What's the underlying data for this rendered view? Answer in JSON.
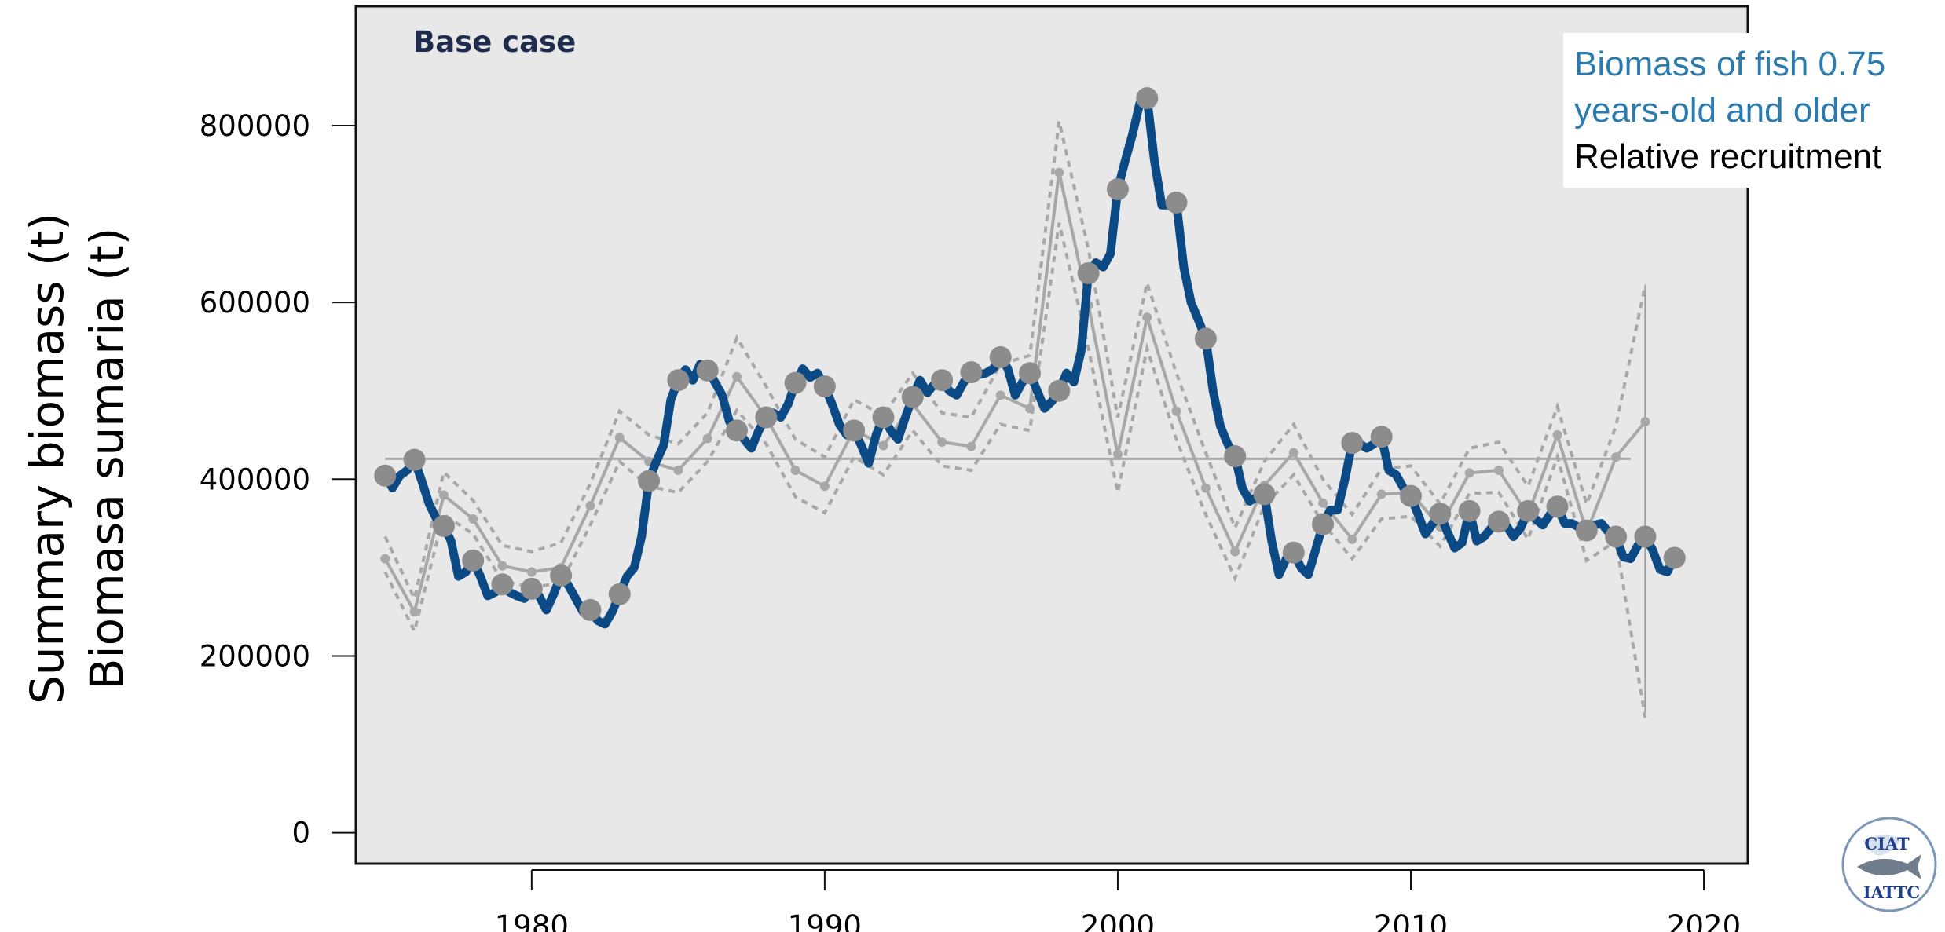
{
  "legend": {
    "biomass_line1": "Biomass of fish 0.75",
    "biomass_line2": "years-old and older",
    "recruitment": "Relative recruitment"
  },
  "logo": {
    "top_text": "CIAT",
    "bottom_text": "IATTC"
  },
  "colors": {
    "biomass": "#0b4a85",
    "recruitment": "#a8a8a8",
    "points": "#8c8c8c",
    "panel": "#e8e8e8"
  },
  "chart_data": {
    "type": "line",
    "title": "Base case",
    "ylabel_lines": [
      "Summary biomass (t)",
      "Biomasa sumaria (t)"
    ],
    "xlim": [
      1974,
      2021.5
    ],
    "ylim": [
      -35000,
      935000
    ],
    "xticks": [
      1980,
      1990,
      2000,
      2010,
      2020
    ],
    "yticks": [
      0,
      200000,
      400000,
      600000,
      800000
    ],
    "reference_line": {
      "y": 423000,
      "x_start": 1975,
      "x_end": 2017.5
    },
    "series": [
      {
        "kind": "biomass",
        "x": [
          1975,
          1975.25,
          1975.5,
          1975.75,
          1976,
          1976.25,
          1976.5,
          1976.75,
          1977,
          1977.25,
          1977.5,
          1977.75,
          1978,
          1978.25,
          1978.5,
          1978.75,
          1979,
          1979.25,
          1979.5,
          1979.75,
          1980,
          1980.25,
          1980.5,
          1980.75,
          1981,
          1981.25,
          1981.5,
          1981.75,
          1982,
          1982.25,
          1982.5,
          1982.75,
          1983,
          1983.25,
          1983.5,
          1983.75,
          1984,
          1984.25,
          1984.5,
          1984.75,
          1985,
          1985.25,
          1985.5,
          1985.75,
          1986,
          1986.25,
          1986.5,
          1986.75,
          1987,
          1987.25,
          1987.5,
          1987.75,
          1988,
          1988.25,
          1988.5,
          1988.75,
          1989,
          1989.25,
          1989.5,
          1989.75,
          1990,
          1990.25,
          1990.5,
          1990.75,
          1991,
          1991.25,
          1991.5,
          1991.75,
          1992,
          1992.25,
          1992.5,
          1992.75,
          1993,
          1993.25,
          1993.5,
          1993.75,
          1994,
          1994.25,
          1994.5,
          1994.75,
          1995,
          1995.25,
          1995.5,
          1995.75,
          1996,
          1996.25,
          1996.5,
          1996.75,
          1997,
          1997.25,
          1997.5,
          1997.75,
          1998,
          1998.25,
          1998.5,
          1998.75,
          1999,
          1999.25,
          1999.5,
          1999.75,
          2000,
          2000.25,
          2000.5,
          2000.75,
          2001,
          2001.25,
          2001.5,
          2001.75,
          2002,
          2002.25,
          2002.5,
          2002.75,
          2003,
          2003.25,
          2003.5,
          2003.75,
          2004,
          2004.25,
          2004.5,
          2004.75,
          2005,
          2005.25,
          2005.5,
          2005.75,
          2006,
          2006.25,
          2006.5,
          2006.75,
          2007,
          2007.25,
          2007.5,
          2007.75,
          2008,
          2008.25,
          2008.5,
          2008.75,
          2009,
          2009.25,
          2009.5,
          2009.75,
          2010,
          2010.25,
          2010.5,
          2010.75,
          2011,
          2011.25,
          2011.5,
          2011.75,
          2012,
          2012.25,
          2012.5,
          2012.75,
          2013,
          2013.25,
          2013.5,
          2013.75,
          2014,
          2014.25,
          2014.5,
          2014.75,
          2015,
          2015.25,
          2015.5,
          2015.75,
          2016,
          2016.25,
          2016.5,
          2016.75,
          2017,
          2017.25,
          2017.5,
          2017.75,
          2018,
          2018.25,
          2018.5,
          2018.75,
          2019
        ],
        "y": [
          404000,
          390000,
          404000,
          410000,
          422000,
          398000,
          372000,
          355000,
          347000,
          330000,
          290000,
          295000,
          308000,
          290000,
          268000,
          272000,
          281000,
          272000,
          268000,
          265000,
          276000,
          268000,
          252000,
          270000,
          291000,
          280000,
          265000,
          250000,
          252000,
          240000,
          236000,
          250000,
          270000,
          290000,
          300000,
          335000,
          398000,
          420000,
          438000,
          490000,
          512000,
          524000,
          512000,
          530000,
          523000,
          510000,
          495000,
          465000,
          455000,
          445000,
          435000,
          455000,
          470000,
          475000,
          470000,
          485000,
          509000,
          525000,
          515000,
          520000,
          505000,
          485000,
          462000,
          450000,
          455000,
          438000,
          418000,
          450000,
          470000,
          455000,
          445000,
          470000,
          493000,
          512000,
          498000,
          508000,
          512000,
          500000,
          495000,
          510000,
          521000,
          518000,
          520000,
          525000,
          538000,
          525000,
          495000,
          510000,
          520000,
          500000,
          480000,
          488000,
          500000,
          520000,
          510000,
          545000,
          633000,
          645000,
          640000,
          655000,
          728000,
          760000,
          790000,
          825000,
          831000,
          760000,
          710000,
          710000,
          713000,
          640000,
          600000,
          580000,
          559000,
          500000,
          460000,
          440000,
          426000,
          390000,
          375000,
          380000,
          383000,
          330000,
          292000,
          310000,
          317000,
          300000,
          292000,
          320000,
          349000,
          365000,
          365000,
          400000,
          441000,
          440000,
          435000,
          440000,
          448000,
          410000,
          405000,
          390000,
          381000,
          360000,
          338000,
          350000,
          361000,
          340000,
          322000,
          328000,
          364000,
          330000,
          335000,
          345000,
          352000,
          348000,
          335000,
          345000,
          364000,
          355000,
          348000,
          360000,
          369000,
          350000,
          350000,
          345000,
          342000,
          348000,
          350000,
          340000,
          335000,
          312000,
          310000,
          325000,
          335000,
          320000,
          298000,
          295000,
          311000
        ],
        "marker_x": [
          1975,
          1976,
          1977,
          1978,
          1979,
          1980,
          1981,
          1982,
          1983,
          1984,
          1985,
          1986,
          1987,
          1988,
          1989,
          1990,
          1991,
          1992,
          1993,
          1994,
          1995,
          1996,
          1997,
          1998,
          1999,
          2000,
          2001,
          2002,
          2003,
          2004,
          2005,
          2006,
          2007,
          2008,
          2009,
          2010,
          2011,
          2012,
          2013,
          2014,
          2015,
          2016,
          2017,
          2018,
          2019
        ],
        "marker_y": [
          404000,
          422000,
          347000,
          308000,
          281000,
          276000,
          291000,
          252000,
          270000,
          398000,
          512000,
          523000,
          455000,
          470000,
          509000,
          505000,
          455000,
          470000,
          493000,
          512000,
          521000,
          538000,
          520000,
          500000,
          633000,
          728000,
          831000,
          713000,
          559000,
          426000,
          383000,
          317000,
          349000,
          441000,
          448000,
          381000,
          361000,
          364000,
          352000,
          364000,
          369000,
          342000,
          335000,
          335000,
          311000
        ]
      },
      {
        "kind": "recruitment",
        "x": [
          1975,
          1976,
          1977,
          1978,
          1979,
          1980,
          1981,
          1982,
          1983,
          1984,
          1985,
          1986,
          1987,
          1988,
          1989,
          1990,
          1991,
          1992,
          1993,
          1994,
          1995,
          1996,
          1997,
          1998,
          1999,
          2000,
          2001,
          2002,
          2003,
          2004,
          2005,
          2006,
          2007,
          2008,
          2009,
          2010,
          2011,
          2012,
          2013,
          2014,
          2015,
          2016,
          2017,
          2018
        ],
        "y": [
          310000,
          250000,
          382000,
          355000,
          302000,
          295000,
          300000,
          370000,
          447000,
          420000,
          410000,
          446000,
          516000,
          470000,
          410000,
          392000,
          456000,
          438000,
          485000,
          442000,
          437000,
          495000,
          480000,
          747000,
          597000,
          428000,
          583000,
          477000,
          390000,
          318000,
          393000,
          430000,
          373000,
          332000,
          383000,
          385000,
          346000,
          407000,
          410000,
          360000,
          450000,
          340000,
          425000,
          465000
        ],
        "upper": [
          335000,
          265000,
          408000,
          376000,
          325000,
          318000,
          328000,
          395000,
          477000,
          450000,
          440000,
          475000,
          560000,
          505000,
          445000,
          425000,
          490000,
          472000,
          520000,
          475000,
          470000,
          530000,
          540000,
          805000,
          660000,
          470000,
          622000,
          520000,
          430000,
          345000,
          420000,
          462000,
          400000,
          360000,
          412000,
          415000,
          372000,
          435000,
          442000,
          392000,
          482000,
          372000,
          460000,
          620000
        ],
        "lower": [
          295000,
          228000,
          360000,
          338000,
          285000,
          278000,
          282000,
          348000,
          420000,
          392000,
          385000,
          420000,
          478000,
          440000,
          380000,
          362000,
          425000,
          405000,
          455000,
          415000,
          410000,
          462000,
          455000,
          690000,
          548000,
          385000,
          548000,
          445000,
          360000,
          288000,
          370000,
          405000,
          350000,
          310000,
          355000,
          358000,
          324000,
          384000,
          385000,
          332000,
          425000,
          308000,
          330000,
          130000
        ]
      }
    ]
  }
}
